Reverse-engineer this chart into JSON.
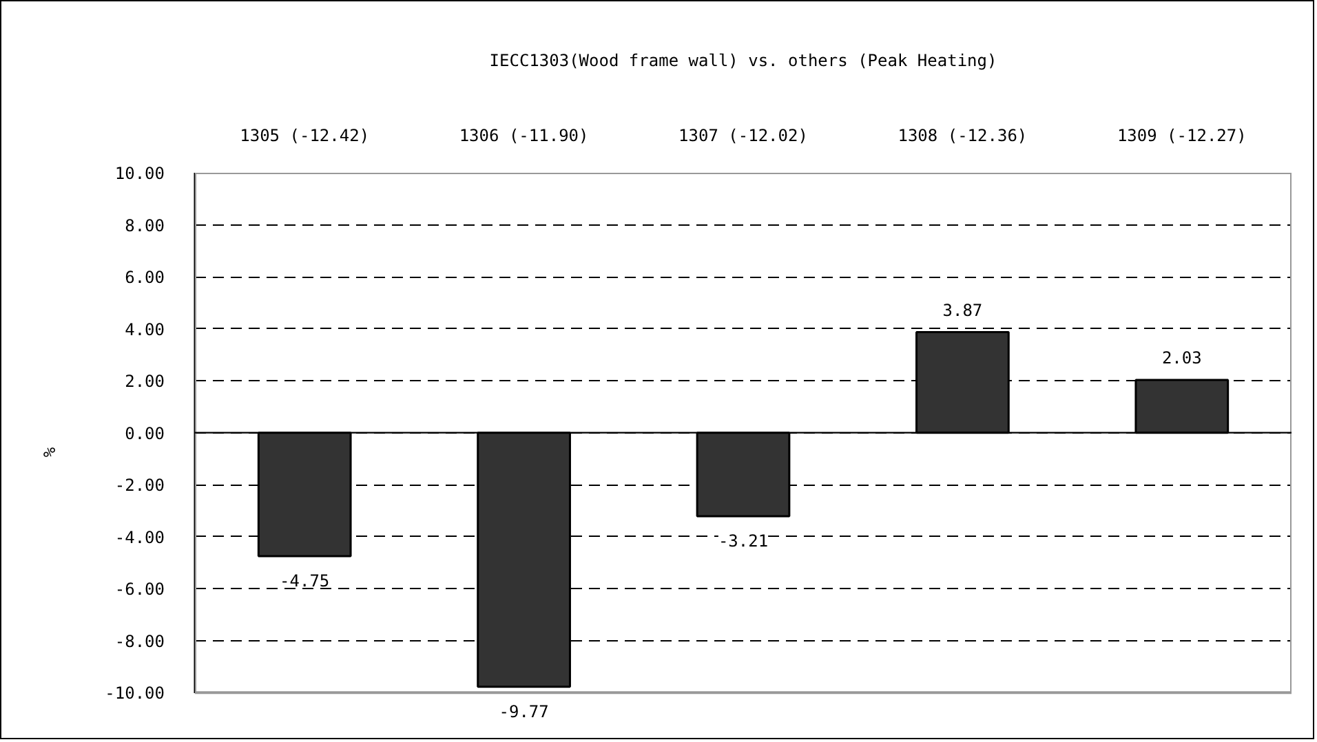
{
  "chart_data": {
    "type": "bar",
    "title": "IECC1303(Wood frame wall) vs. others (Peak Heating)",
    "ylabel": "%",
    "categories": [
      "1305 (-12.42)",
      "1306 (-11.90)",
      "1307 (-12.02)",
      "1308 (-12.36)",
      "1309 (-12.27)"
    ],
    "values": [
      -4.75,
      -9.77,
      -3.21,
      3.87,
      2.03
    ],
    "color": "#333333",
    "ylim": [
      -10,
      10
    ],
    "yticks": [
      {
        "value": -10,
        "label": "-10.00"
      },
      {
        "value": -8,
        "label": "-8.00"
      },
      {
        "value": -6,
        "label": "-6.00"
      },
      {
        "value": -4,
        "label": "-4.00"
      },
      {
        "value": -2,
        "label": "-2.00"
      },
      {
        "value": 0,
        "label": "0.00"
      },
      {
        "value": 2,
        "label": "2.00"
      },
      {
        "value": 4,
        "label": "4.00"
      },
      {
        "value": 6,
        "label": "6.00"
      },
      {
        "value": 8,
        "label": "8.00"
      },
      {
        "value": 10,
        "label": "10.00"
      }
    ],
    "grid": "y",
    "data_labels": true
  }
}
